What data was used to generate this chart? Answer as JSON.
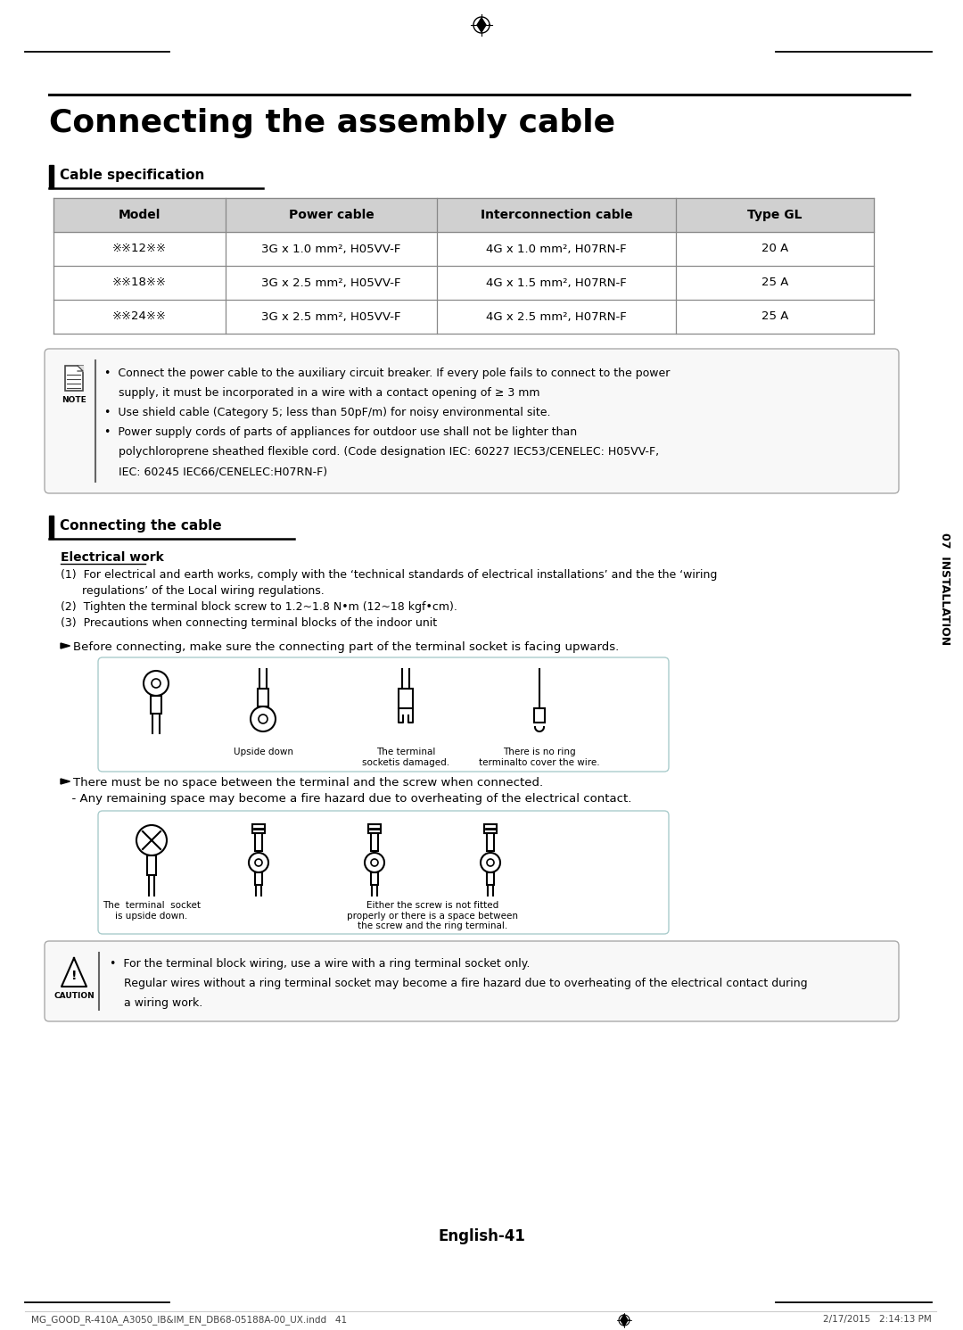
{
  "title": "Connecting the assembly cable",
  "section1": "Cable specification",
  "section2": "Connecting the cable",
  "table_headers": [
    "Model",
    "Power cable",
    "Interconnection cable",
    "Type GL"
  ],
  "table_rows": [
    [
      "※※12※※",
      "3G x 1.0 mm², H05VV-F",
      "4G x 1.0 mm², H07RN-F",
      "20 A"
    ],
    [
      "※※18※※",
      "3G x 2.5 mm², H05VV-F",
      "4G x 1.5 mm², H07RN-F",
      "25 A"
    ],
    [
      "※※24※※",
      "3G x 2.5 mm², H05VV-F",
      "4G x 2.5 mm², H07RN-F",
      "25 A"
    ]
  ],
  "note_lines": [
    "•  Connect the power cable to the auxiliary circuit breaker. If every pole fails to connect to the power",
    "    supply, it must be incorporated in a wire with a contact opening of ≥ 3 mm",
    "•  Use shield cable (Category 5; less than 50pF/m) for noisy environmental site.",
    "•  Power supply cords of parts of appliances for outdoor use shall not be lighter than",
    "    polychloroprene sheathed flexible cord. (Code designation IEC: 60227 IEC53/CENELEC: H05VV-F,",
    "    IEC: 60245 IEC66/CENELEC:H07RN-F)"
  ],
  "ew_title": "Electrical work",
  "ew_lines": [
    "(1)  For electrical and earth works, comply with the ‘technical standards of electrical installations’ and the the ‘wiring",
    "      regulations’ of the Local wiring regulations.",
    "(2)  Tighten the terminal block screw to 1.2~1.8 N•m (12~18 kgf•cm).",
    "(3)  Precautions when connecting terminal blocks of the indoor unit"
  ],
  "arrow1_text": "Before connecting, make sure the connecting part of the terminal socket is facing upwards.",
  "diag1_labels": [
    "Upside down",
    "The terminal\nsocketis damaged.",
    "There is no ring\nterminalto cover the wire."
  ],
  "arrow2_line1": "There must be no space between the terminal and the screw when connected.",
  "arrow2_line2": "  - Any remaining space may become a fire hazard due to overheating of the electrical contact.",
  "diag2_label1": "The  terminal  socket\nis upside down.",
  "diag2_label2": "Either the screw is not fitted\nproperly or there is a space between\nthe screw and the ring terminal.",
  "caution_lines": [
    "•  For the terminal block wiring, use a wire with a ring terminal socket only.",
    "    Regular wires without a ring terminal socket may become a fire hazard due to overheating of the electrical contact during",
    "    a wiring work."
  ],
  "side_label": "07  INSTALLATION",
  "page_num": "English-41",
  "footer_l": "MG_GOOD_R-410A_A3050_IB&IM_EN_DB68-05188A-00_UX.indd   41",
  "footer_r": "2/17/2015   2:14:13 PM",
  "bg": "#ffffff",
  "gray_header": "#d0d0d0",
  "table_line": "#888888",
  "note_bg": "#f8f8f8",
  "diag_border": "#aacccc",
  "caution_bg": "#f8f8f8"
}
